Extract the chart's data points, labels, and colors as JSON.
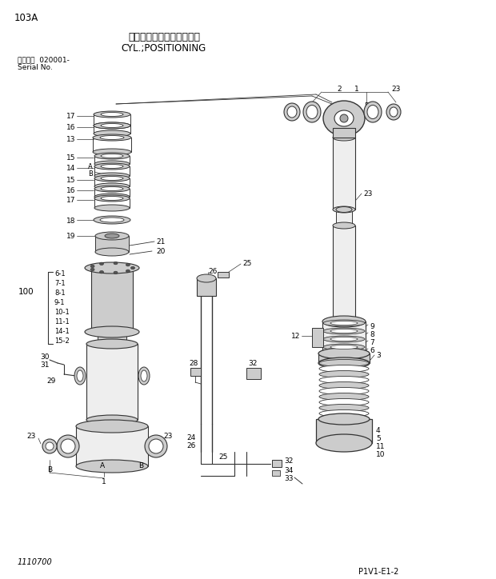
{
  "title_jp": "シリンダ；ポジショニング",
  "title_en": "CYL.;POSITIONING",
  "page_code": "103A",
  "serial_label": "適用号機  020001-",
  "serial_no": "Serial No.",
  "bottom_left": "1110700",
  "bottom_right": "P1V1-E1-2",
  "bg_color": "#ffffff",
  "lc": "#333333",
  "tc": "#000000",
  "figsize": [
    6.2,
    7.24
  ],
  "dpi": 100
}
